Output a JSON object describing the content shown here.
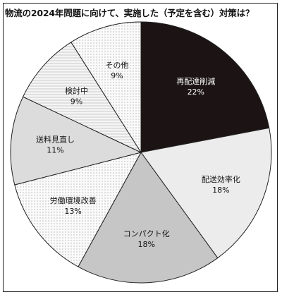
{
  "chart_data": {
    "type": "pie",
    "title": "物流の2024年問題に向けて、実施した（予定を含む）対策は？",
    "slices": [
      {
        "label": "再配達削減",
        "value": 22,
        "value_label": "22%",
        "color": "#1c1414",
        "text_color": "#ffffff",
        "pattern": "solid"
      },
      {
        "label": "配送効率化",
        "value": 18,
        "value_label": "18%",
        "color": "#ececec",
        "text_color": "#111111",
        "pattern": "solid"
      },
      {
        "label": "コンパクト化",
        "value": 18,
        "value_label": "18%",
        "color": "#c6c6c6",
        "text_color": "#111111",
        "pattern": "solid"
      },
      {
        "label": "労働環境改善",
        "value": 13,
        "value_label": "13%",
        "color": "#f7f7f7",
        "text_color": "#111111",
        "pattern": "dots"
      },
      {
        "label": "送料見直し",
        "value": 11,
        "value_label": "11%",
        "color": "#dcdcdc",
        "text_color": "#111111",
        "pattern": "solid"
      },
      {
        "label": "検討中",
        "value": 9,
        "value_label": "9%",
        "color": "#f4f4f4",
        "text_color": "#111111",
        "pattern": "lines"
      },
      {
        "label": "その他",
        "value": 9,
        "value_label": "9%",
        "color": "#fbfbfb",
        "text_color": "#111111",
        "pattern": "dots"
      }
    ]
  }
}
